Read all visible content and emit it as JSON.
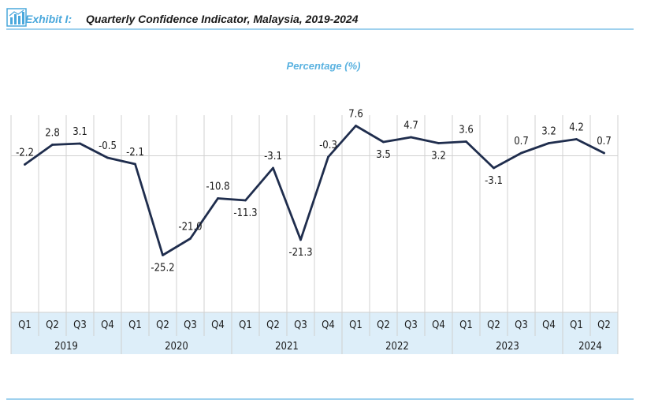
{
  "header": {
    "exhibit_label": "Exhibit I:",
    "title": "Quarterly Confidence Indicator, Malaysia, 2019-2024",
    "icon": "bar-chart-icon"
  },
  "colors": {
    "line": "#1f2d4d",
    "accent": "#4aa8dc",
    "axis_band": "#ddeef9",
    "grid": "#d0d0d0"
  },
  "chart_data": {
    "type": "line",
    "ylabel": "Percentage (%)",
    "grid": true,
    "quarters": [
      "Q1",
      "Q2",
      "Q3",
      "Q4",
      "Q1",
      "Q2",
      "Q3",
      "Q4",
      "Q1",
      "Q2",
      "Q3",
      "Q4",
      "Q1",
      "Q2",
      "Q3",
      "Q4",
      "Q1",
      "Q2",
      "Q3",
      "Q4",
      "Q1",
      "Q2"
    ],
    "years": [
      {
        "label": "2019",
        "span": 4
      },
      {
        "label": "2020",
        "span": 4
      },
      {
        "label": "2021",
        "span": 4
      },
      {
        "label": "2022",
        "span": 4
      },
      {
        "label": "2023",
        "span": 4
      },
      {
        "label": "2024",
        "span": 2
      }
    ],
    "values": [
      -2.2,
      2.8,
      3.1,
      -0.5,
      -2.1,
      -25.2,
      -21.0,
      -10.8,
      -11.3,
      -3.1,
      -21.3,
      -0.3,
      7.6,
      3.5,
      4.7,
      3.2,
      3.6,
      -3.1,
      0.7,
      3.2,
      4.2,
      0.7
    ],
    "value_labels": [
      "-2.2",
      "2.8",
      "3.1",
      "-0.5",
      "-2.1",
      "-25.2",
      "-21.0",
      "-10.8",
      "-11.3",
      "-3.1",
      "-21.3",
      "-0.3",
      "7.6",
      "3.5",
      "4.7",
      "3.2",
      "3.6",
      "-3.1",
      "0.7",
      "3.2",
      "4.2",
      "0.7"
    ]
  }
}
